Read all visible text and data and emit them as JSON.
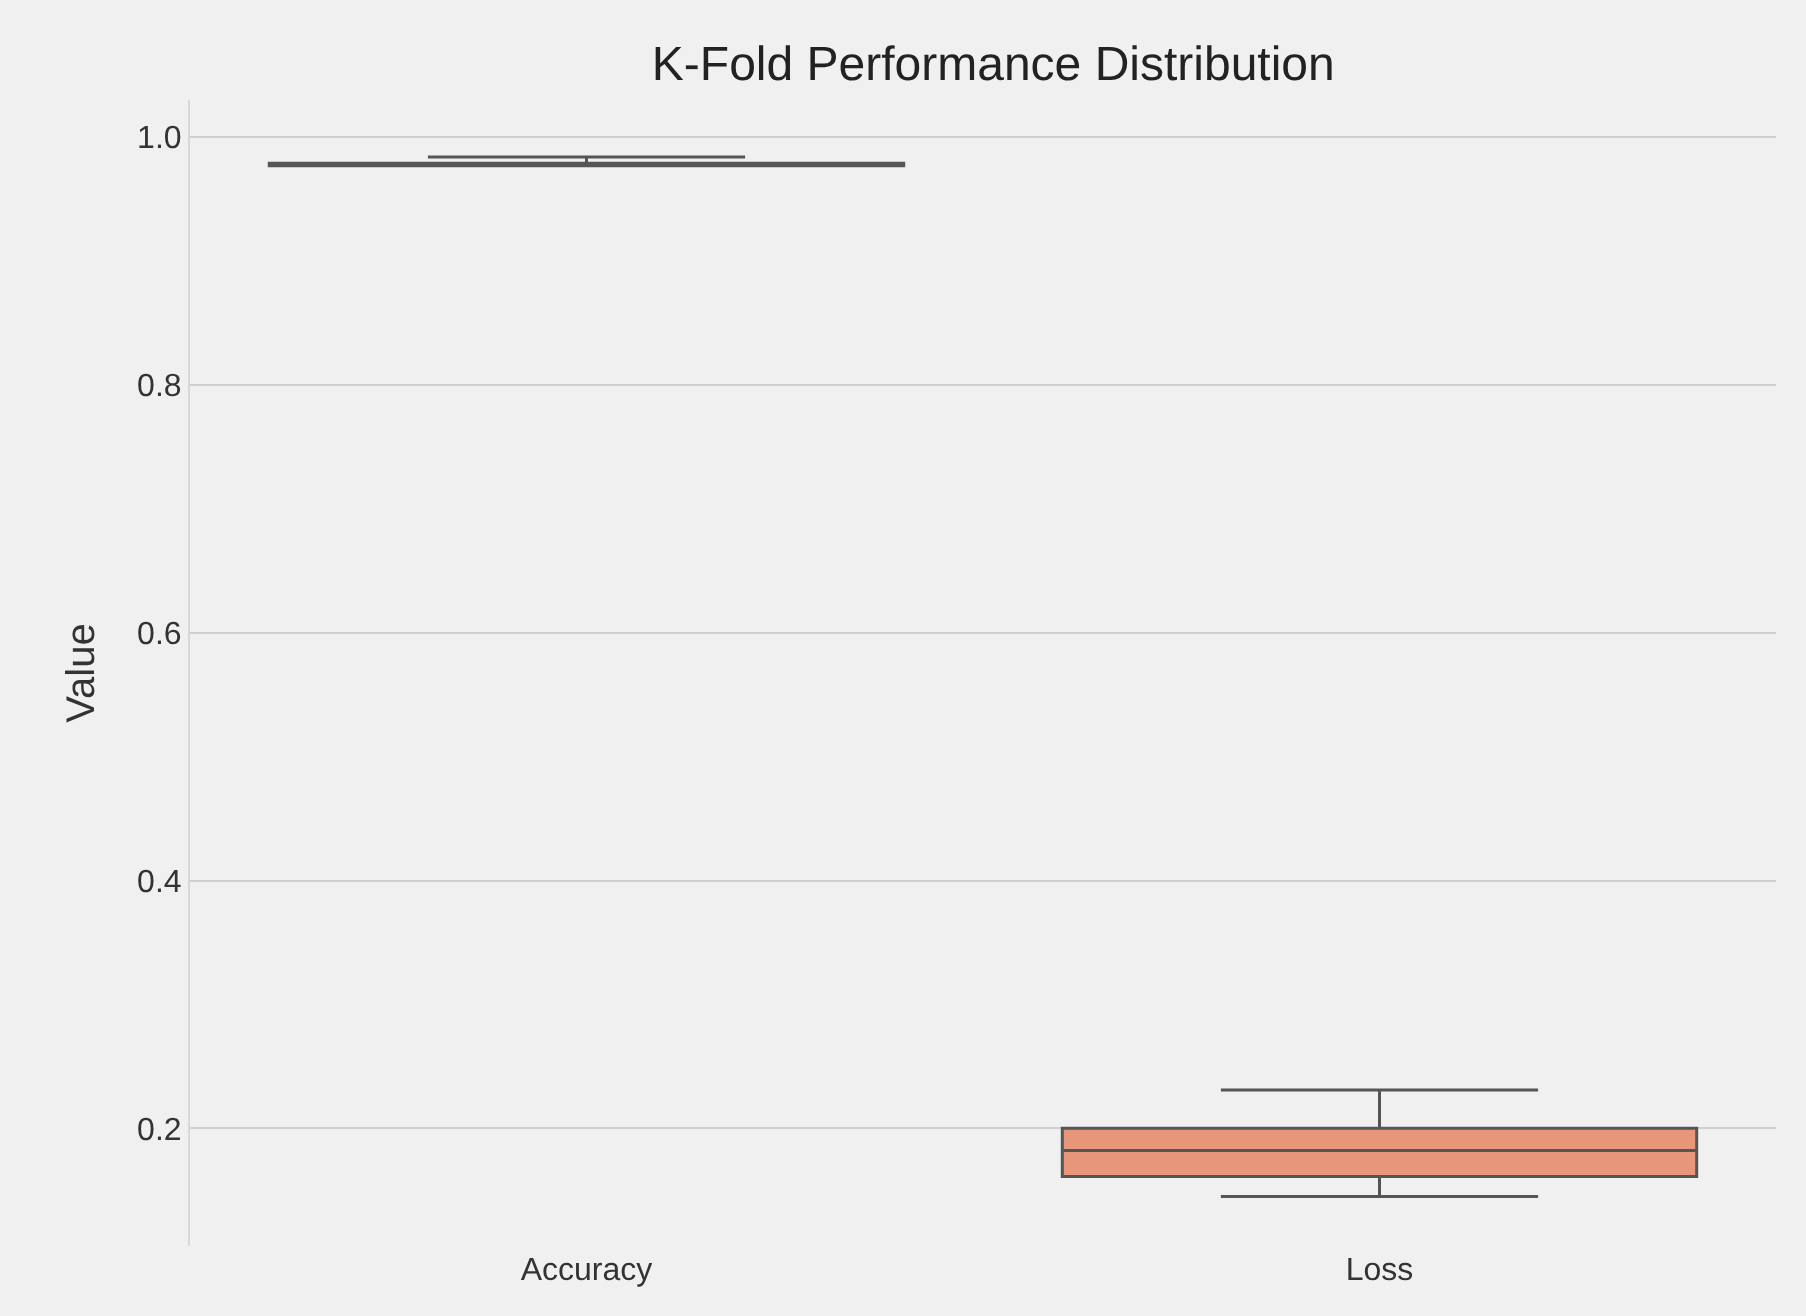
{
  "chart_data": {
    "type": "box",
    "title": "K-Fold Performance Distribution",
    "ylabel": "Value",
    "categories": [
      "Accuracy",
      "Loss"
    ],
    "boxes": [
      {
        "low": 0.977,
        "q1": 0.977,
        "median": 0.978,
        "q3": 0.979,
        "high": 0.984
      },
      {
        "low": 0.145,
        "q1": 0.161,
        "median": 0.182,
        "q3": 0.2,
        "high": 0.231
      }
    ],
    "colors": [
      "#8da0cb",
      "#e8967a"
    ],
    "ylim": [
      0.105,
      1.03
    ],
    "yticks": [
      {
        "value": 0.2,
        "label": "0.2"
      },
      {
        "value": 0.4,
        "label": "0.4"
      },
      {
        "value": 0.6,
        "label": "0.6"
      },
      {
        "value": 0.8,
        "label": "0.8"
      },
      {
        "value": 1.0,
        "label": "1.0"
      }
    ],
    "grid": "y",
    "legend": false
  }
}
